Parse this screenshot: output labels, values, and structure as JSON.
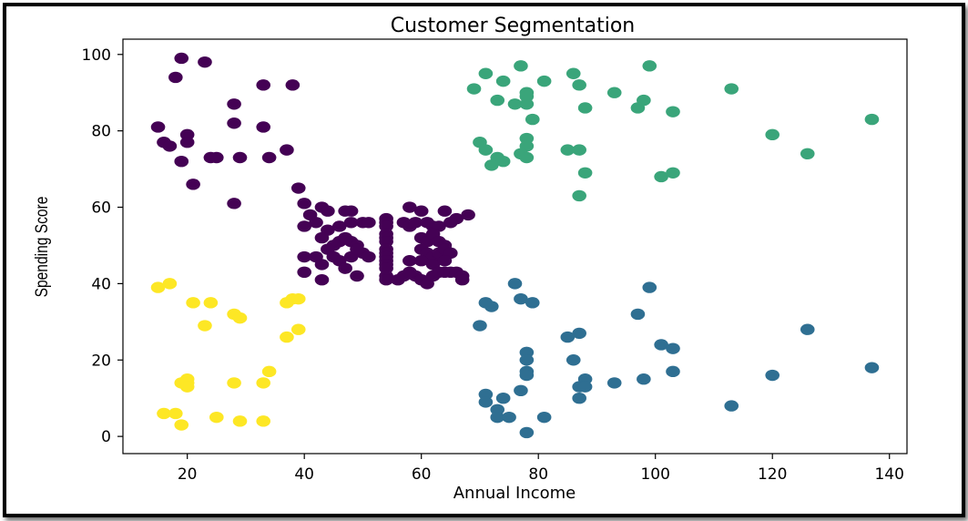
{
  "chart_data": {
    "type": "scatter",
    "title": "Customer Segmentation",
    "xlabel": "Annual Income",
    "ylabel": "Spending Score",
    "xlim": [
      9,
      143
    ],
    "ylim": [
      -4.5,
      104
    ],
    "xticks": [
      20,
      40,
      60,
      80,
      100,
      120,
      140
    ],
    "yticks": [
      0,
      20,
      40,
      60,
      80,
      100
    ],
    "grid": false,
    "legend": "none",
    "series": [
      {
        "color": "#440154",
        "points": [
          [
            19,
            99
          ],
          [
            23,
            98
          ],
          [
            18,
            94
          ],
          [
            33,
            92
          ],
          [
            38,
            92
          ],
          [
            28,
            87
          ],
          [
            15,
            81
          ],
          [
            28,
            82
          ],
          [
            33,
            81
          ],
          [
            20,
            79
          ],
          [
            16,
            77
          ],
          [
            20,
            77
          ],
          [
            17,
            76
          ],
          [
            37,
            75
          ],
          [
            24,
            73
          ],
          [
            25,
            73
          ],
          [
            29,
            73
          ],
          [
            34,
            73
          ],
          [
            19,
            72
          ],
          [
            21,
            66
          ],
          [
            28,
            61
          ],
          [
            39,
            65
          ],
          [
            40,
            61
          ],
          [
            43,
            60
          ],
          [
            44,
            59
          ],
          [
            47,
            59
          ],
          [
            48,
            59
          ],
          [
            42,
            56
          ],
          [
            46,
            55
          ],
          [
            48,
            56
          ],
          [
            50,
            56
          ],
          [
            51,
            56
          ],
          [
            40,
            55
          ],
          [
            44,
            54
          ],
          [
            45,
            50
          ],
          [
            46,
            51
          ],
          [
            47,
            52
          ],
          [
            48,
            51
          ],
          [
            49,
            50
          ],
          [
            50,
            48
          ],
          [
            43,
            52
          ],
          [
            44,
            49
          ],
          [
            42,
            47
          ],
          [
            45,
            47
          ],
          [
            46,
            46
          ],
          [
            48,
            47
          ],
          [
            51,
            47
          ],
          [
            43,
            45
          ],
          [
            47,
            44
          ],
          [
            40,
            47
          ],
          [
            40,
            43
          ],
          [
            43,
            41
          ],
          [
            49,
            42
          ],
          [
            54,
            57
          ],
          [
            54,
            56
          ],
          [
            54,
            55
          ],
          [
            54,
            53
          ],
          [
            54,
            52
          ],
          [
            54,
            51
          ],
          [
            54,
            49
          ],
          [
            54,
            48
          ],
          [
            54,
            47
          ],
          [
            54,
            46
          ],
          [
            54,
            45
          ],
          [
            54,
            44
          ],
          [
            54,
            42
          ],
          [
            54,
            41
          ],
          [
            57,
            56
          ],
          [
            58,
            55
          ],
          [
            59,
            56
          ],
          [
            60,
            59
          ],
          [
            62,
            55
          ],
          [
            64,
            59
          ],
          [
            66,
            57
          ],
          [
            68,
            58
          ],
          [
            58,
            60
          ],
          [
            61,
            56
          ],
          [
            63,
            55
          ],
          [
            65,
            56
          ],
          [
            60,
            52
          ],
          [
            61,
            51
          ],
          [
            62,
            53
          ],
          [
            63,
            51
          ],
          [
            64,
            50
          ],
          [
            60,
            49
          ],
          [
            61,
            48
          ],
          [
            62,
            47
          ],
          [
            63,
            48
          ],
          [
            64,
            49
          ],
          [
            65,
            48
          ],
          [
            60,
            46
          ],
          [
            62,
            45
          ],
          [
            64,
            46
          ],
          [
            58,
            46
          ],
          [
            59,
            42
          ],
          [
            60,
            41
          ],
          [
            61,
            40
          ],
          [
            62,
            42
          ],
          [
            63,
            43
          ],
          [
            64,
            43
          ],
          [
            65,
            43
          ],
          [
            66,
            43
          ],
          [
            67,
            42
          ],
          [
            67,
            41
          ],
          [
            56,
            41
          ],
          [
            57,
            42
          ],
          [
            58,
            43
          ],
          [
            41,
            58
          ],
          [
            49,
            49
          ]
        ]
      },
      {
        "color": "#3aa57a",
        "points": [
          [
            71,
            95
          ],
          [
            77,
            97
          ],
          [
            86,
            95
          ],
          [
            99,
            97
          ],
          [
            69,
            91
          ],
          [
            74,
            93
          ],
          [
            81,
            93
          ],
          [
            87,
            92
          ],
          [
            93,
            90
          ],
          [
            78,
            90
          ],
          [
            78,
            89
          ],
          [
            73,
            88
          ],
          [
            76,
            87
          ],
          [
            78,
            87
          ],
          [
            98,
            88
          ],
          [
            97,
            86
          ],
          [
            88,
            86
          ],
          [
            103,
            85
          ],
          [
            113,
            91
          ],
          [
            79,
            83
          ],
          [
            137,
            83
          ],
          [
            120,
            79
          ],
          [
            70,
            77
          ],
          [
            78,
            78
          ],
          [
            71,
            75
          ],
          [
            78,
            76
          ],
          [
            85,
            75
          ],
          [
            87,
            75
          ],
          [
            77,
            74
          ],
          [
            78,
            73
          ],
          [
            73,
            73
          ],
          [
            74,
            72
          ],
          [
            72,
            71
          ],
          [
            126,
            74
          ],
          [
            88,
            69
          ],
          [
            101,
            68
          ],
          [
            103,
            69
          ],
          [
            87,
            63
          ]
        ]
      },
      {
        "color": "#2f6f92",
        "points": [
          [
            76,
            40
          ],
          [
            99,
            39
          ],
          [
            77,
            36
          ],
          [
            79,
            35
          ],
          [
            71,
            35
          ],
          [
            72,
            34
          ],
          [
            97,
            32
          ],
          [
            70,
            29
          ],
          [
            126,
            28
          ],
          [
            87,
            27
          ],
          [
            85,
            26
          ],
          [
            101,
            24
          ],
          [
            103,
            23
          ],
          [
            78,
            22
          ],
          [
            78,
            20
          ],
          [
            86,
            20
          ],
          [
            78,
            17
          ],
          [
            78,
            16
          ],
          [
            103,
            17
          ],
          [
            120,
            16
          ],
          [
            137,
            18
          ],
          [
            88,
            15
          ],
          [
            98,
            15
          ],
          [
            93,
            14
          ],
          [
            87,
            13
          ],
          [
            88,
            13
          ],
          [
            77,
            12
          ],
          [
            71,
            11
          ],
          [
            71,
            9
          ],
          [
            74,
            10
          ],
          [
            87,
            10
          ],
          [
            113,
            8
          ],
          [
            73,
            7
          ],
          [
            73,
            5
          ],
          [
            75,
            5
          ],
          [
            81,
            5
          ],
          [
            78,
            1
          ]
        ]
      },
      {
        "color": "#fde725",
        "points": [
          [
            17,
            40
          ],
          [
            15,
            39
          ],
          [
            38,
            36
          ],
          [
            39,
            36
          ],
          [
            37,
            35
          ],
          [
            21,
            35
          ],
          [
            24,
            35
          ],
          [
            28,
            32
          ],
          [
            29,
            31
          ],
          [
            23,
            29
          ],
          [
            39,
            28
          ],
          [
            37,
            26
          ],
          [
            34,
            17
          ],
          [
            20,
            15
          ],
          [
            19,
            14
          ],
          [
            20,
            14
          ],
          [
            20,
            13
          ],
          [
            28,
            14
          ],
          [
            33,
            14
          ],
          [
            16,
            6
          ],
          [
            18,
            6
          ],
          [
            25,
            5
          ],
          [
            19,
            3
          ],
          [
            29,
            4
          ],
          [
            33,
            4
          ]
        ]
      }
    ]
  }
}
